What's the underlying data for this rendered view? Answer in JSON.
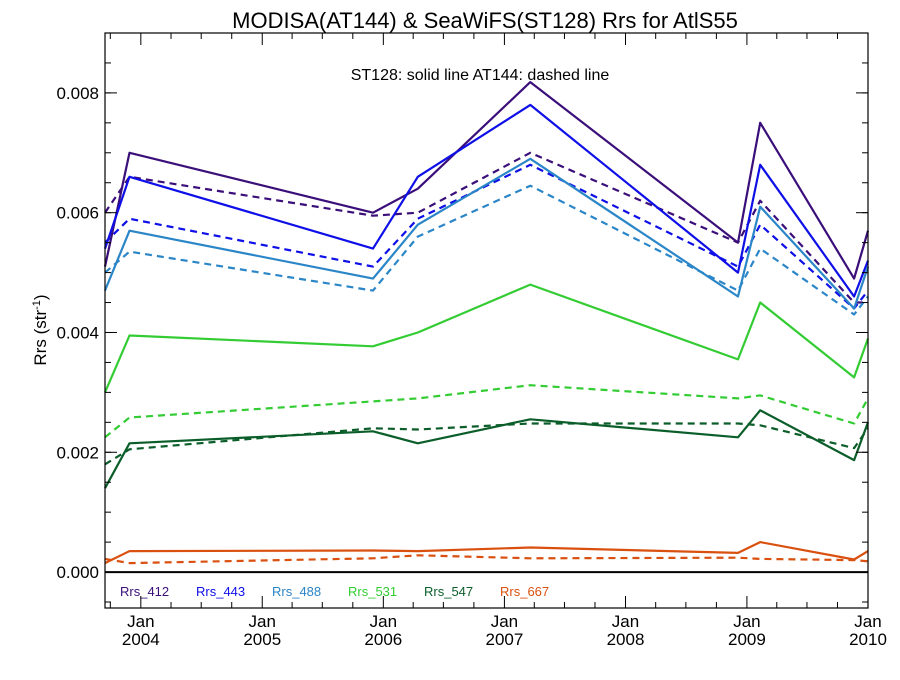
{
  "chart_data": {
    "type": "line",
    "title": "MODISA(AT144) & SeaWiFS(ST128)  Rrs for AtlS55",
    "ylabel": "Rrs (str",
    "ylabel_sup": "-1",
    "ylabel_close": ")",
    "annotation": "ST128: solid line   AT144: dashed line",
    "xlim": [
      "2003-09-15",
      "2010-01-01"
    ],
    "ylim": [
      -0.0006,
      0.009
    ],
    "yticks": [
      {
        "value": 0.0,
        "label": "0.000"
      },
      {
        "value": 0.002,
        "label": "0.002"
      },
      {
        "value": 0.004,
        "label": "0.004"
      },
      {
        "value": 0.006,
        "label": "0.006"
      },
      {
        "value": 0.008,
        "label": "0.008"
      }
    ],
    "xticks": [
      {
        "date": "2004-01-01",
        "month": "Jan",
        "year": "2004"
      },
      {
        "date": "2005-01-01",
        "month": "Jan",
        "year": "2005"
      },
      {
        "date": "2006-01-01",
        "month": "Jan",
        "year": "2006"
      },
      {
        "date": "2007-01-01",
        "month": "Jan",
        "year": "2007"
      },
      {
        "date": "2008-01-01",
        "month": "Jan",
        "year": "2008"
      },
      {
        "date": "2009-01-01",
        "month": "Jan",
        "year": "2009"
      },
      {
        "date": "2010-01-01",
        "month": "Jan",
        "year": "2010"
      }
    ],
    "zero_line": true,
    "series": [
      {
        "name": "Rrs_412",
        "color": "#3b0f7a",
        "style": "solid",
        "x": [
          "2003-09-15",
          "2003-11-28",
          "2005-12-01",
          "2006-04-15",
          "2007-03-20",
          "2008-12-05",
          "2009-02-10",
          "2009-11-20",
          "2010-01-01"
        ],
        "y": [
          0.0051,
          0.007,
          0.006,
          0.0064,
          0.00818,
          0.0055,
          0.0075,
          0.0049,
          0.0057
        ]
      },
      {
        "name": "Rrs_412",
        "color": "#3b0f7a",
        "style": "dashed",
        "x": [
          "2003-09-15",
          "2003-11-28",
          "2005-12-01",
          "2006-04-15",
          "2007-03-20",
          "2008-12-05",
          "2009-02-10",
          "2009-11-20",
          "2010-01-01"
        ],
        "y": [
          0.006,
          0.0066,
          0.00595,
          0.006,
          0.007,
          0.0055,
          0.0062,
          0.0045,
          0.0045
        ]
      },
      {
        "name": "Rrs_443",
        "color": "#0f0fe8",
        "style": "solid",
        "x": [
          "2003-09-15",
          "2003-11-28",
          "2005-12-01",
          "2006-04-15",
          "2007-03-20",
          "2008-12-05",
          "2009-02-10",
          "2009-11-20",
          "2010-01-01"
        ],
        "y": [
          0.0054,
          0.0066,
          0.0054,
          0.0066,
          0.0078,
          0.005,
          0.0068,
          0.0046,
          0.0052
        ]
      },
      {
        "name": "Rrs_443",
        "color": "#0f0fe8",
        "style": "dashed",
        "x": [
          "2003-09-15",
          "2003-11-28",
          "2005-12-01",
          "2006-04-15",
          "2007-03-20",
          "2008-12-05",
          "2009-02-10",
          "2009-11-20",
          "2010-01-01"
        ],
        "y": [
          0.0055,
          0.0059,
          0.0051,
          0.0059,
          0.0068,
          0.0051,
          0.0058,
          0.0044,
          0.0047
        ]
      },
      {
        "name": "Rrs_488",
        "color": "#2b86c8",
        "style": "solid",
        "x": [
          "2003-09-15",
          "2003-11-28",
          "2005-12-01",
          "2006-04-15",
          "2007-03-20",
          "2008-12-05",
          "2009-02-10",
          "2009-11-20",
          "2010-01-01"
        ],
        "y": [
          0.0047,
          0.0057,
          0.0049,
          0.0058,
          0.0069,
          0.0046,
          0.0061,
          0.0044,
          0.0051
        ]
      },
      {
        "name": "Rrs_488",
        "color": "#2b86c8",
        "style": "dashed",
        "x": [
          "2003-09-15",
          "2003-11-28",
          "2005-12-01",
          "2006-04-15",
          "2007-03-20",
          "2008-12-05",
          "2009-02-10",
          "2009-11-20",
          "2010-01-01"
        ],
        "y": [
          0.005,
          0.00535,
          0.0047,
          0.0056,
          0.00645,
          0.0047,
          0.0054,
          0.0043,
          0.0046
        ]
      },
      {
        "name": "Rrs_531",
        "color": "#33cc33",
        "style": "solid",
        "x": [
          "2003-09-15",
          "2003-11-28",
          "2005-12-01",
          "2006-04-15",
          "2007-03-20",
          "2008-12-05",
          "2009-02-10",
          "2009-11-20",
          "2010-01-01"
        ],
        "y": [
          0.003,
          0.00395,
          0.00377,
          0.004,
          0.0048,
          0.00355,
          0.0045,
          0.00325,
          0.0039
        ]
      },
      {
        "name": "Rrs_531",
        "color": "#33cc33",
        "style": "dashed",
        "x": [
          "2003-09-15",
          "2003-11-28",
          "2005-12-01",
          "2006-04-15",
          "2007-03-20",
          "2008-12-05",
          "2009-02-10",
          "2009-11-20",
          "2010-01-01"
        ],
        "y": [
          0.00225,
          0.00258,
          0.00285,
          0.0029,
          0.00312,
          0.0029,
          0.00295,
          0.00248,
          0.0029
        ]
      },
      {
        "name": "Rrs_547",
        "color": "#0b5e2a",
        "style": "solid",
        "x": [
          "2003-09-15",
          "2003-11-28",
          "2005-12-01",
          "2006-04-15",
          "2007-03-20",
          "2008-12-05",
          "2009-02-10",
          "2009-11-20",
          "2010-01-01"
        ],
        "y": [
          0.0014,
          0.00215,
          0.00235,
          0.00215,
          0.00255,
          0.00225,
          0.0027,
          0.00187,
          0.0025
        ]
      },
      {
        "name": "Rrs_547",
        "color": "#0b5e2a",
        "style": "dashed",
        "x": [
          "2003-09-15",
          "2003-11-28",
          "2005-12-01",
          "2006-04-15",
          "2007-03-20",
          "2008-12-05",
          "2009-02-10",
          "2009-11-20",
          "2010-01-01"
        ],
        "y": [
          0.0018,
          0.00205,
          0.0024,
          0.00238,
          0.00248,
          0.00248,
          0.00245,
          0.00207,
          0.0024
        ]
      },
      {
        "name": "Rrs_667",
        "color": "#d9500f",
        "style": "solid",
        "x": [
          "2003-09-15",
          "2003-11-28",
          "2005-12-01",
          "2006-04-15",
          "2007-03-20",
          "2008-12-05",
          "2009-02-10",
          "2009-11-20",
          "2010-01-01"
        ],
        "y": [
          0.00015,
          0.00035,
          0.00036,
          0.00035,
          0.00041,
          0.00032,
          0.0005,
          0.00021,
          0.00035
        ]
      },
      {
        "name": "Rrs_667",
        "color": "#d9500f",
        "style": "dashed",
        "x": [
          "2003-09-15",
          "2003-11-28",
          "2005-12-01",
          "2006-04-15",
          "2007-03-20",
          "2008-12-05",
          "2009-02-10",
          "2009-11-20",
          "2010-01-01"
        ],
        "y": [
          0.00022,
          0.00015,
          0.00023,
          0.00028,
          0.00023,
          0.00024,
          0.00022,
          0.0002,
          0.00018
        ]
      }
    ],
    "legend": [
      {
        "label": "Rrs_412",
        "color": "#3b0f7a"
      },
      {
        "label": "Rrs_443",
        "color": "#0f0fe8"
      },
      {
        "label": "Rrs_488",
        "color": "#2b86c8"
      },
      {
        "label": "Rrs_531",
        "color": "#33cc33"
      },
      {
        "label": "Rrs_547",
        "color": "#0b5e2a"
      },
      {
        "label": "Rrs_667",
        "color": "#d9500f"
      }
    ],
    "legend_placement": "bottom-left inside plot"
  }
}
